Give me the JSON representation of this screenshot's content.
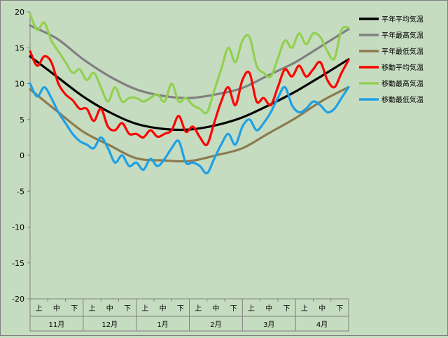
{
  "chart_data": {
    "type": "line",
    "title": "",
    "xlabel": "",
    "ylabel": "",
    "ylim": [
      -20,
      20
    ],
    "yticks": [
      20,
      15,
      10,
      5,
      0,
      -5,
      -10,
      -15,
      -20
    ],
    "grid": false,
    "legend_position": "right",
    "months": [
      "11月",
      "12月",
      "1月",
      "2月",
      "3月",
      "4月"
    ],
    "periods": [
      "上",
      "中",
      "下"
    ],
    "x_unit": "day index (1 Nov = 0, 30 Apr = 180)",
    "series": [
      {
        "name": "平年平均気温",
        "color": "#000000",
        "x": [
          0,
          15,
          30,
          45,
          60,
          75,
          90,
          105,
          120,
          135,
          150,
          165,
          180
        ],
        "y": [
          13.8,
          11.0,
          8.2,
          6.0,
          4.4,
          3.7,
          3.6,
          4.2,
          5.3,
          7.0,
          8.9,
          11.1,
          13.4
        ]
      },
      {
        "name": "平年最高気温",
        "color": "#808080",
        "x": [
          0,
          15,
          30,
          45,
          60,
          75,
          90,
          105,
          120,
          135,
          150,
          165,
          180
        ],
        "y": [
          18.1,
          16.3,
          13.4,
          11.0,
          9.2,
          8.3,
          8.0,
          8.5,
          9.4,
          11.2,
          13.0,
          15.3,
          17.6
        ]
      },
      {
        "name": "平年最低気温",
        "color": "#8c7b50",
        "x": [
          0,
          15,
          30,
          45,
          60,
          75,
          90,
          105,
          120,
          135,
          150,
          165,
          180
        ],
        "y": [
          9.2,
          6.2,
          3.3,
          1.4,
          -0.4,
          -0.7,
          -0.8,
          0.0,
          1.0,
          3.1,
          5.2,
          7.6,
          9.5
        ]
      },
      {
        "name": "移動平均気温",
        "color": "#ff0000",
        "x": [
          0,
          4,
          8,
          12,
          16,
          20,
          24,
          28,
          32,
          36,
          40,
          44,
          48,
          52,
          56,
          60,
          64,
          68,
          72,
          76,
          80,
          84,
          88,
          92,
          96,
          100,
          104,
          108,
          112,
          116,
          120,
          124,
          128,
          132,
          136,
          140,
          144,
          148,
          152,
          156,
          160,
          164,
          168,
          172,
          176,
          180
        ],
        "y": [
          14.5,
          12.5,
          13.8,
          13.0,
          10.0,
          8.5,
          7.7,
          6.5,
          6.5,
          4.8,
          6.5,
          4.0,
          3.5,
          4.5,
          3.0,
          3.0,
          2.5,
          3.5,
          2.6,
          3.0,
          3.5,
          5.5,
          3.3,
          4.0,
          2.5,
          1.5,
          4.5,
          7.5,
          9.5,
          7.0,
          10.5,
          11.5,
          7.5,
          8.0,
          7.0,
          9.5,
          12.0,
          11.0,
          12.5,
          11.0,
          12.0,
          13.0,
          10.5,
          9.5,
          11.5,
          13.3
        ]
      },
      {
        "name": "移動最高気温",
        "color": "#92d050",
        "x": [
          0,
          4,
          8,
          12,
          16,
          20,
          24,
          28,
          32,
          36,
          40,
          44,
          48,
          52,
          56,
          60,
          64,
          68,
          72,
          76,
          80,
          84,
          88,
          92,
          96,
          100,
          104,
          108,
          112,
          116,
          120,
          124,
          128,
          132,
          136,
          140,
          144,
          148,
          152,
          156,
          160,
          164,
          168,
          172,
          176,
          180
        ],
        "y": [
          19.7,
          17.5,
          18.5,
          16.0,
          14.5,
          13.0,
          11.5,
          12.0,
          10.5,
          11.5,
          9.5,
          7.5,
          9.5,
          7.5,
          8.0,
          8.0,
          7.5,
          8.0,
          8.5,
          7.5,
          10.0,
          7.5,
          8.0,
          7.0,
          6.5,
          6.0,
          9.0,
          12.0,
          15.0,
          13.0,
          16.0,
          16.5,
          12.5,
          11.5,
          11.0,
          13.5,
          16.0,
          15.0,
          17.0,
          15.5,
          17.0,
          16.5,
          14.5,
          13.5,
          17.5,
          17.8
        ]
      },
      {
        "name": "移動最低気温",
        "color": "#1ea0e6",
        "x": [
          0,
          4,
          8,
          12,
          16,
          20,
          24,
          28,
          32,
          36,
          40,
          44,
          48,
          52,
          56,
          60,
          64,
          68,
          72,
          76,
          80,
          84,
          88,
          92,
          96,
          100,
          104,
          108,
          112,
          116,
          120,
          124,
          128,
          132,
          136,
          140,
          144,
          148,
          152,
          156,
          160,
          164,
          168,
          172,
          176,
          180
        ],
        "y": [
          10.0,
          8.2,
          9.5,
          8.0,
          6.0,
          4.5,
          3.0,
          2.0,
          1.5,
          1.0,
          2.5,
          1.0,
          -1.0,
          0.0,
          -1.5,
          -1.0,
          -2.0,
          -0.5,
          -1.5,
          -0.5,
          1.0,
          2.0,
          -1.0,
          -1.0,
          -1.5,
          -2.5,
          -0.5,
          1.5,
          3.0,
          1.5,
          4.0,
          5.0,
          3.5,
          4.5,
          6.0,
          8.0,
          9.5,
          7.0,
          6.0,
          6.5,
          7.5,
          7.0,
          6.0,
          6.5,
          8.0,
          9.5
        ]
      }
    ]
  }
}
